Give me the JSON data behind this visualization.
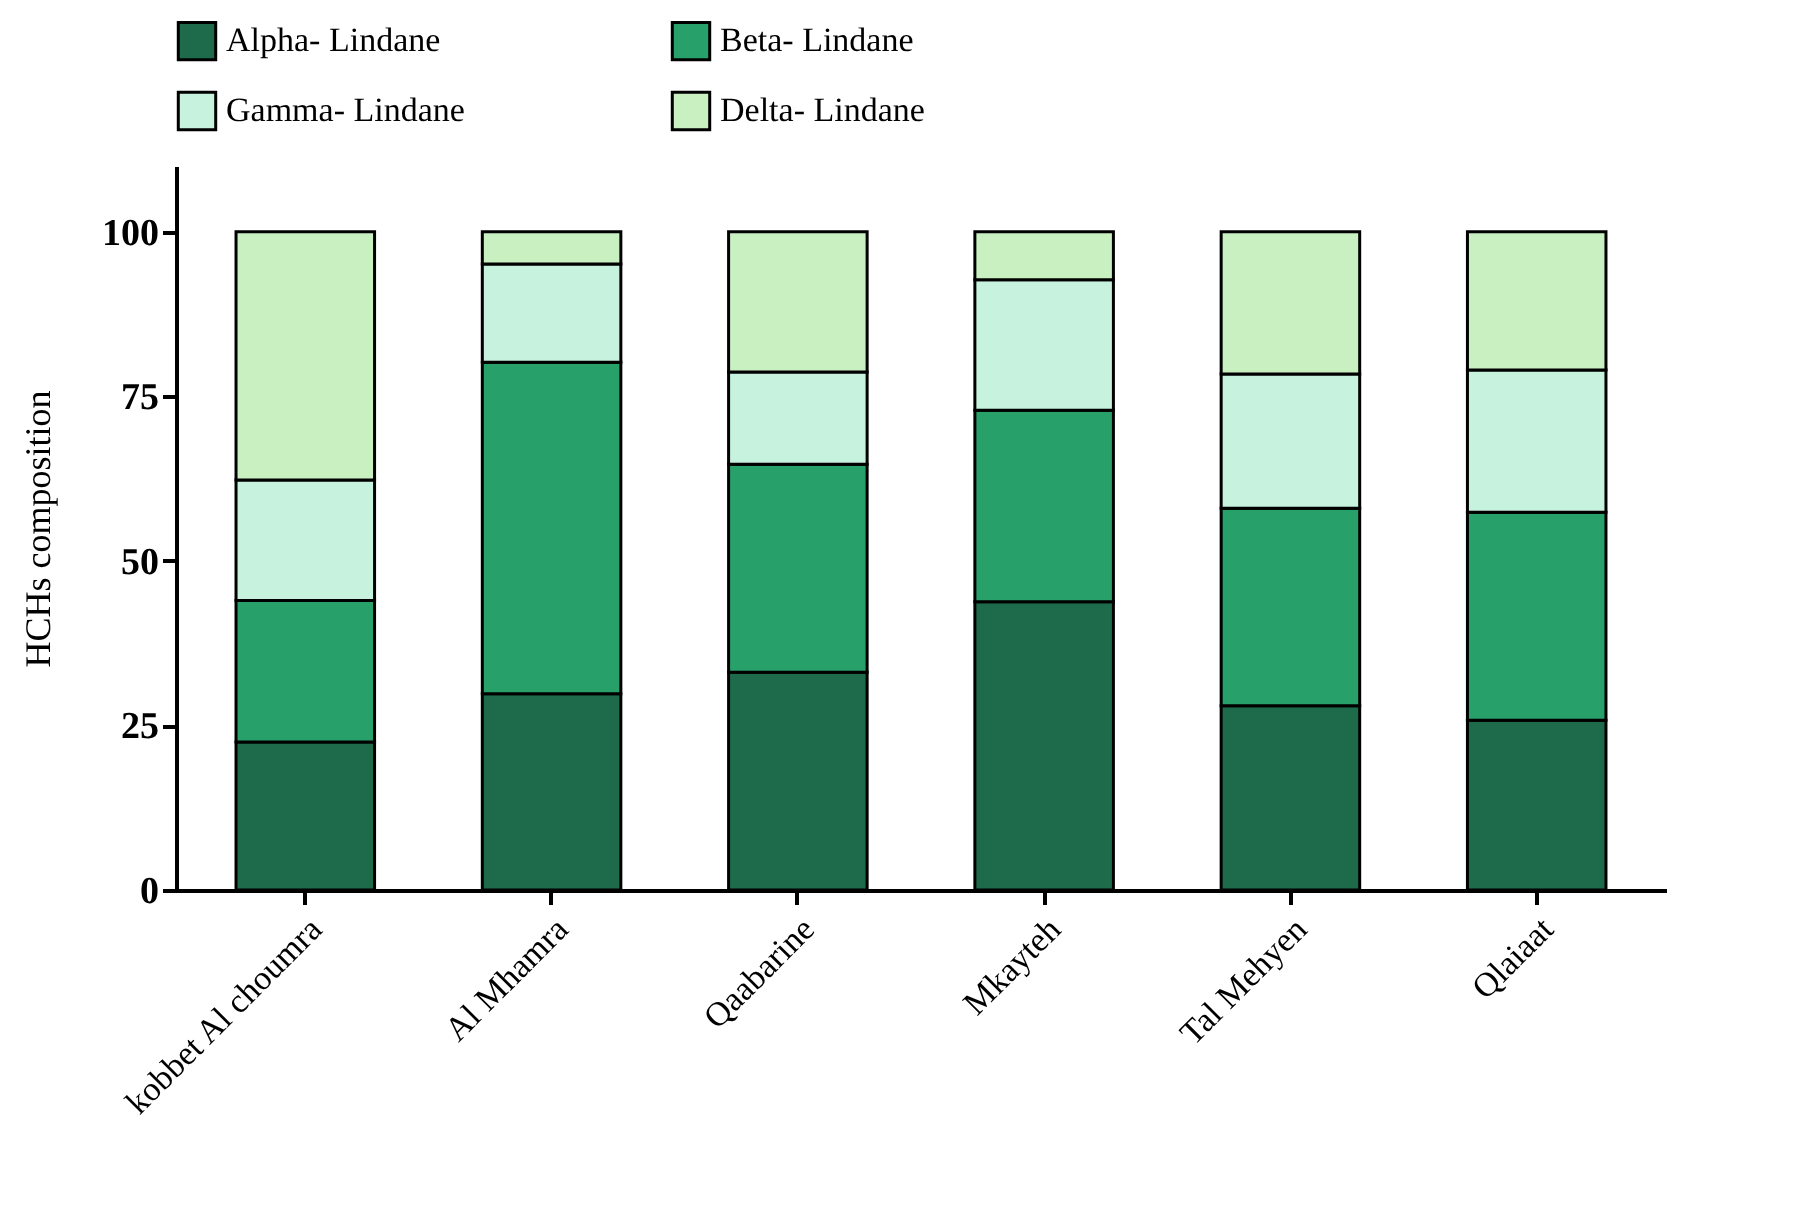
{
  "chart_data": {
    "type": "bar",
    "stacked": true,
    "ylabel": "HCHs composition",
    "categories": [
      "kobbet Al choumra",
      "Al Mhamra",
      "Qaabarine",
      "Mkayteh",
      "Tal Mehyen",
      "Qlaiaat"
    ],
    "series": [
      {
        "name": "Alpha- Lindane",
        "color": "#1e6b4c",
        "values": [
          22.5,
          29.8,
          33.1,
          43.8,
          28,
          25.8
        ]
      },
      {
        "name": "Beta- Lindane",
        "color": "#27a06a",
        "values": [
          21.5,
          50.4,
          31.6,
          29.1,
          30,
          31.6
        ]
      },
      {
        "name": "Gamma- Lindane",
        "color": "#c6f2de",
        "values": [
          18.3,
          14.9,
          14,
          19.8,
          20.4,
          21.6
        ]
      },
      {
        "name": "Delta- Lindane",
        "color": "#c8f0c0",
        "values": [
          37.7,
          4.9,
          21.3,
          7.3,
          21.6,
          21
        ]
      }
    ],
    "ylim": [
      0,
      110
    ],
    "yticks": [
      0,
      25,
      50,
      75,
      100
    ],
    "grid": false,
    "legend": "top"
  }
}
